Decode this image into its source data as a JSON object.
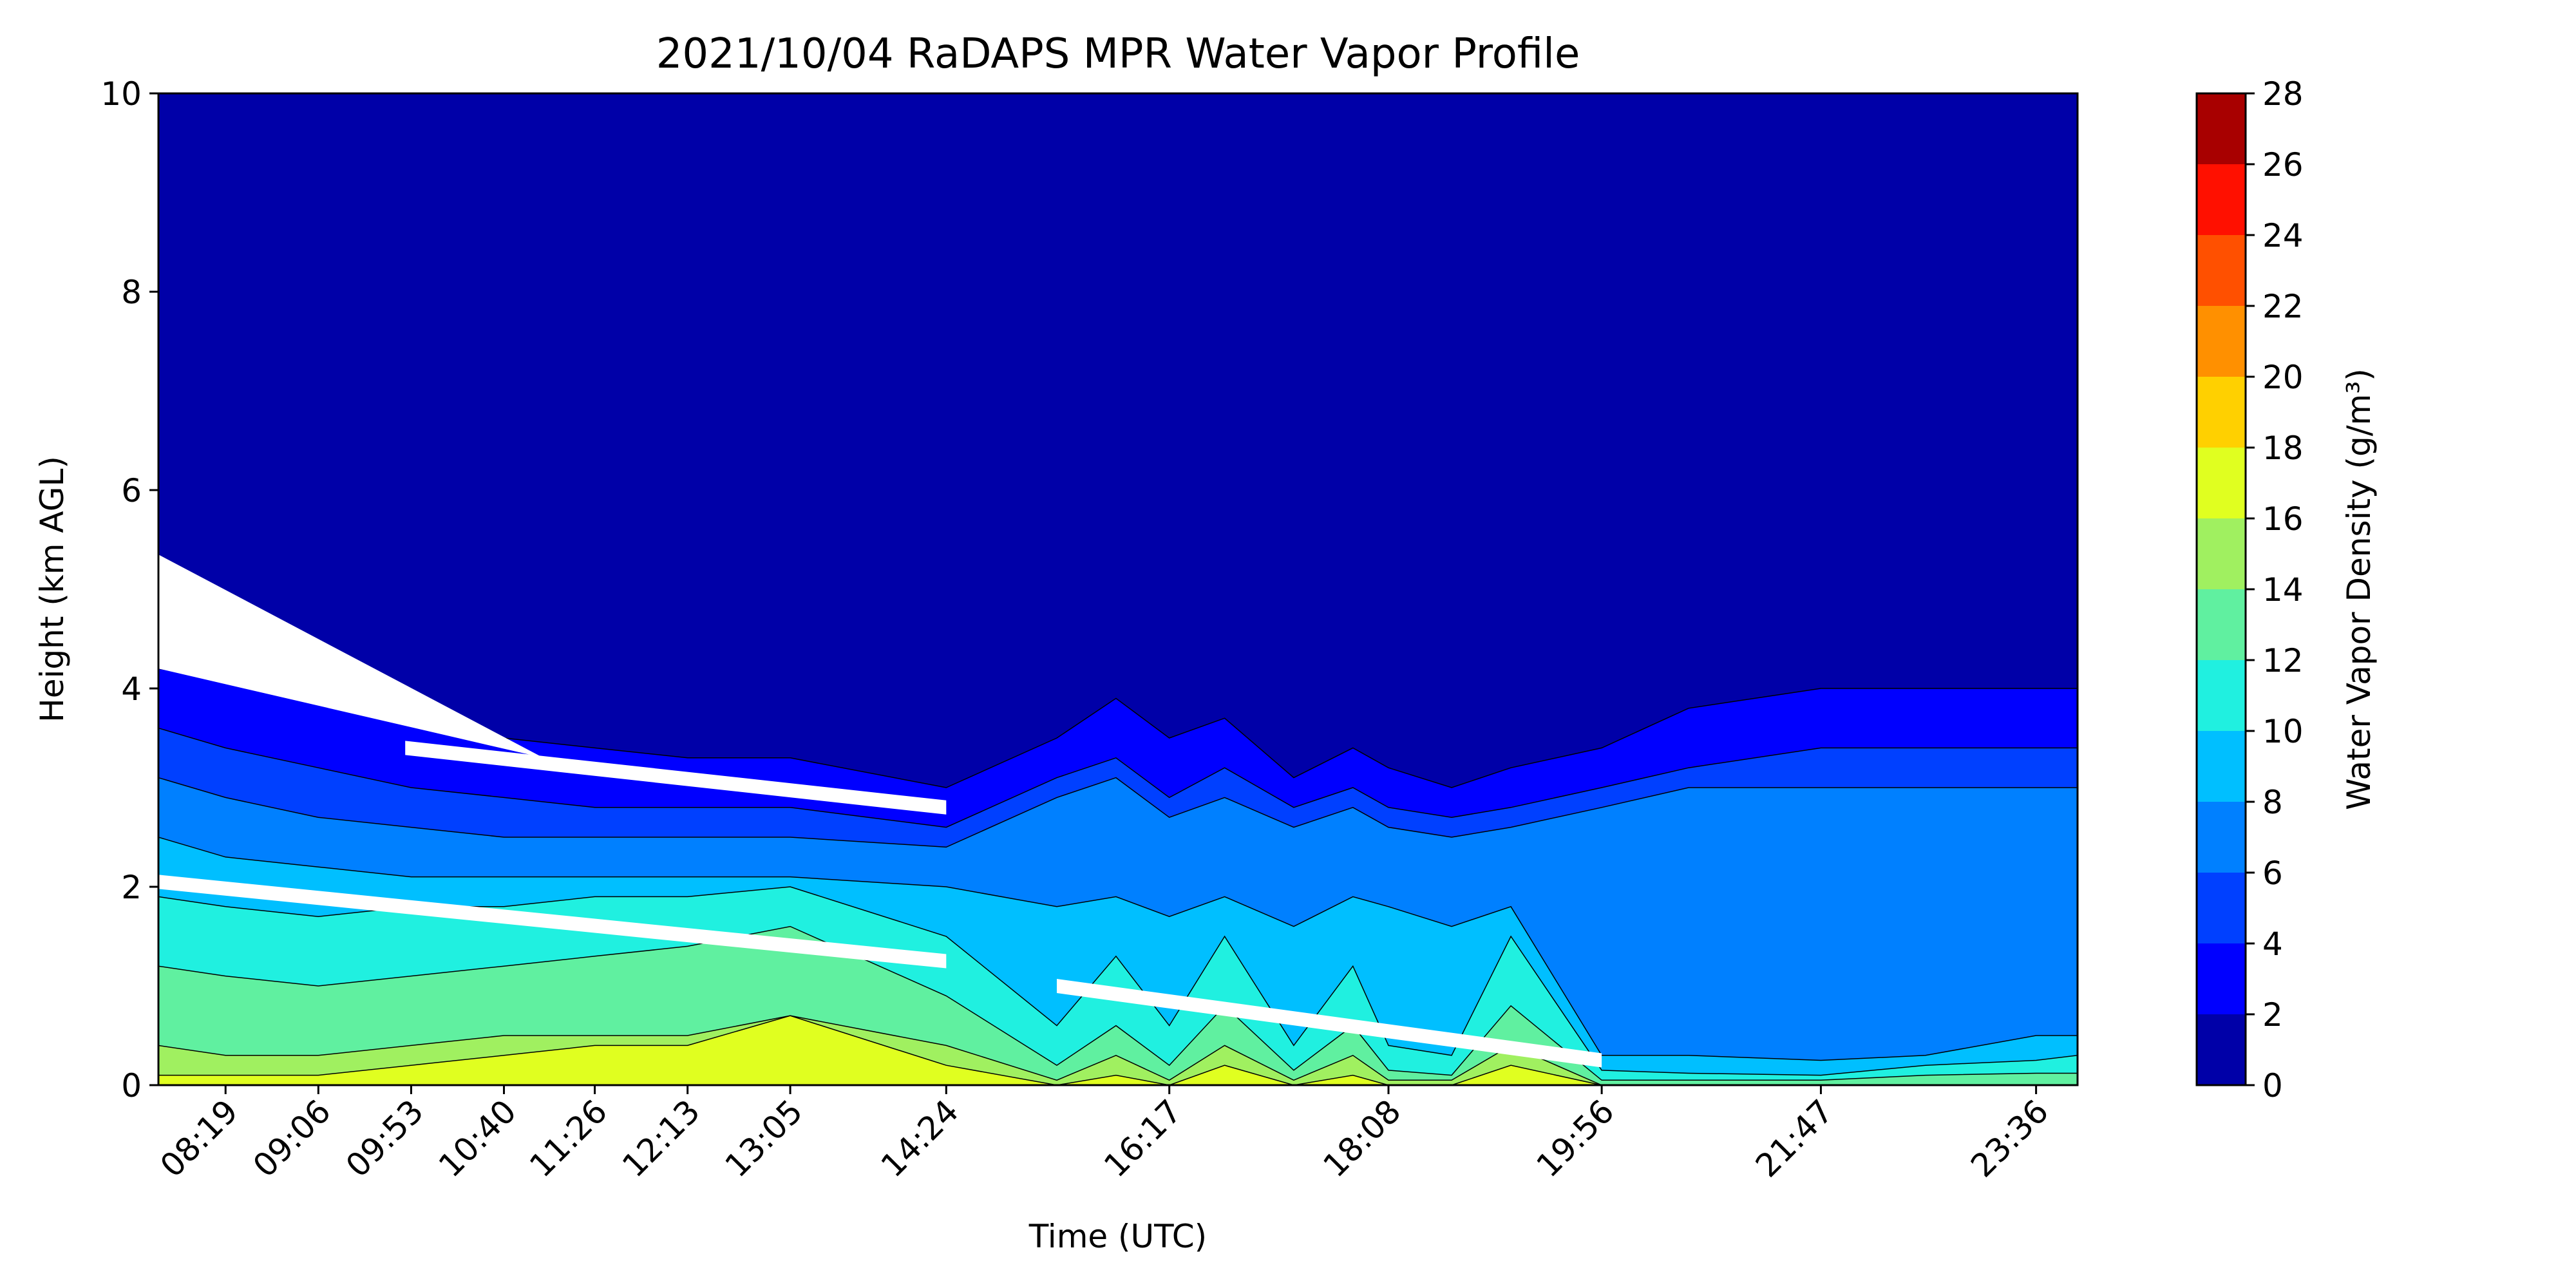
{
  "chart_data": {
    "type": "heatmap",
    "subtype": "filled-contour",
    "title": "2021/10/04 RaDAPS MPR Water Vapor Profile",
    "xlabel": "Time (UTC)",
    "ylabel": "Height (km AGL)",
    "colorbar_label": "Water Vapor Density (g/m³)",
    "x_ticks": [
      "08:19",
      "09:06",
      "09:53",
      "10:40",
      "11:26",
      "12:13",
      "13:05",
      "14:24",
      "16:17",
      "18:08",
      "19:56",
      "21:47",
      "23:36"
    ],
    "x_tick_times": [
      "08:19",
      "09:06",
      "09:53",
      "10:40",
      "11:26",
      "12:13",
      "13:05",
      "14:24",
      "16:17",
      "18:08",
      "19:56",
      "21:47",
      "23:36"
    ],
    "xlim": [
      "07:45",
      "23:57"
    ],
    "ylim": [
      0,
      10
    ],
    "y_ticks": [
      "0",
      "2",
      "4",
      "6",
      "8",
      "10"
    ],
    "y_tick_values": [
      0,
      2,
      4,
      6,
      8,
      10
    ],
    "levels": [
      0,
      2,
      4,
      6,
      8,
      10,
      12,
      14,
      16,
      18,
      20,
      22,
      24,
      26,
      28
    ],
    "level_labels": [
      "0",
      "2",
      "4",
      "6",
      "8",
      "10",
      "12",
      "14",
      "16",
      "18",
      "20",
      "22",
      "24",
      "26",
      "28"
    ],
    "level_colors": [
      "#0000a8",
      "#0000ff",
      "#0040ff",
      "#0080ff",
      "#00bfff",
      "#20f0e0",
      "#60f0a0",
      "#a0f060",
      "#e0ff20",
      "#ffd000",
      "#ff9000",
      "#ff5000",
      "#ff1000",
      "#a80000"
    ],
    "contour_tops": {
      "times": [
        "07:45",
        "08:19",
        "09:06",
        "09:53",
        "10:40",
        "11:26",
        "12:13",
        "13:05",
        "14:24",
        "15:20",
        "15:50",
        "16:17",
        "16:45",
        "17:20",
        "17:50",
        "18:08",
        "18:40",
        "19:10",
        "19:56",
        "20:40",
        "21:47",
        "22:40",
        "23:36",
        "23:57"
      ],
      "lines_km": [
        [
          4.2,
          4.1,
          3.9,
          3.7,
          3.5,
          3.4,
          3.3,
          3.3,
          3.0,
          3.5,
          3.9,
          3.5,
          3.7,
          3.1,
          3.4,
          3.2,
          3.0,
          3.2,
          3.4,
          3.8,
          4.0,
          4.0,
          4.0,
          4.0
        ],
        [
          3.6,
          3.4,
          3.2,
          3.0,
          2.9,
          2.8,
          2.8,
          2.8,
          2.6,
          3.1,
          3.3,
          2.9,
          3.2,
          2.8,
          3.0,
          2.8,
          2.7,
          2.8,
          3.0,
          3.2,
          3.4,
          3.4,
          3.4,
          3.4
        ],
        [
          3.1,
          2.9,
          2.7,
          2.6,
          2.5,
          2.5,
          2.5,
          2.5,
          2.4,
          2.9,
          3.1,
          2.7,
          2.9,
          2.6,
          2.8,
          2.6,
          2.5,
          2.6,
          2.8,
          3.0,
          3.0,
          3.0,
          3.0,
          3.0
        ],
        [
          2.5,
          2.3,
          2.2,
          2.1,
          2.1,
          2.1,
          2.1,
          2.1,
          2.0,
          1.8,
          1.9,
          1.7,
          1.9,
          1.6,
          1.9,
          1.8,
          1.6,
          1.8,
          0.3,
          0.3,
          0.25,
          0.3,
          0.5,
          0.5
        ],
        [
          1.9,
          1.8,
          1.7,
          1.8,
          1.8,
          1.9,
          1.9,
          2.0,
          1.5,
          0.6,
          1.3,
          0.6,
          1.5,
          0.4,
          1.2,
          0.4,
          0.3,
          1.5,
          0.15,
          0.12,
          0.1,
          0.2,
          0.25,
          0.3
        ],
        [
          1.2,
          1.1,
          1.0,
          1.1,
          1.2,
          1.3,
          1.4,
          1.6,
          0.9,
          0.2,
          0.6,
          0.2,
          0.8,
          0.15,
          0.6,
          0.15,
          0.1,
          0.8,
          0.05,
          0.05,
          0.05,
          0.1,
          0.12,
          0.12
        ],
        [
          0.4,
          0.3,
          0.3,
          0.4,
          0.5,
          0.5,
          0.5,
          0.7,
          0.4,
          0.05,
          0.3,
          0.05,
          0.4,
          0.05,
          0.3,
          0.05,
          0.05,
          0.4,
          0.0,
          0.0,
          0.0,
          0.0,
          0.0,
          0.0
        ],
        [
          0.1,
          0.1,
          0.1,
          0.2,
          0.3,
          0.4,
          0.4,
          0.7,
          0.2,
          0.0,
          0.1,
          0.0,
          0.2,
          0.0,
          0.1,
          0.0,
          0.0,
          0.2,
          0.0,
          0.0,
          0.0,
          0.0,
          0.0,
          0.0
        ]
      ],
      "note": "km heights of the top of each filled band (levels 2,4,6,8,10,12,14,16 g/m³) at the listed times; dry region above the top line is 0–2 g/m³"
    },
    "gaps": [
      {
        "label": "missing data wedge",
        "from_time": "07:45",
        "to_time": "11:00",
        "top_km_start": 5.35,
        "top_km_end": 3.3,
        "bottom_km_start": 4.2,
        "bottom_km_end": 3.3
      },
      {
        "label": "missing data streak",
        "from_time": "09:50",
        "to_time": "14:24",
        "km_start": 3.4,
        "km_end": 2.8
      },
      {
        "label": "missing data streak",
        "from_time": "07:45",
        "to_time": "14:24",
        "km_start": 2.05,
        "km_end": 1.25
      },
      {
        "label": "missing data streak",
        "from_time": "15:20",
        "to_time": "19:56",
        "km_start": 1.0,
        "km_end": 0.25
      }
    ],
    "grid": false,
    "colorbar_position": "right"
  }
}
